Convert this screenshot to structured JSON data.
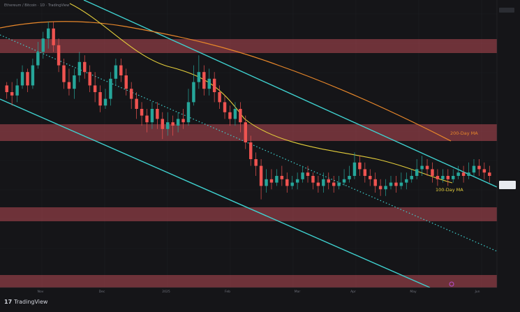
{
  "header": {
    "legend": "Ethereum / Bitcoin · 1D · TradingView"
  },
  "brand": {
    "name": "TradingView",
    "logo": "17"
  },
  "colors": {
    "background": "#151518",
    "up": "#26a69a",
    "down": "#ef5350",
    "zone": "#b84a55",
    "channel": "#3fd2d0",
    "ma100": "#e3cd3b",
    "ma200": "#e8872a"
  },
  "chart_data": {
    "type": "candlestick",
    "title": "",
    "xlabel": "",
    "ylabel": "",
    "x_ticks": [
      "Nov",
      "Dec",
      "2025",
      "Feb",
      "Mar",
      "Apr",
      "May",
      "Jun"
    ],
    "indicators": [
      {
        "name": "200-Day MA"
      },
      {
        "name": "100-Day MA"
      }
    ],
    "candles_ohlc_chart_units": [
      [
        84,
        80,
        86,
        76
      ],
      [
        80,
        78,
        86,
        72
      ],
      [
        78,
        84,
        88,
        74
      ],
      [
        84,
        92,
        96,
        82
      ],
      [
        92,
        84,
        94,
        80
      ],
      [
        84,
        96,
        100,
        82
      ],
      [
        96,
        104,
        110,
        94
      ],
      [
        104,
        112,
        116,
        100
      ],
      [
        112,
        118,
        122,
        106
      ],
      [
        118,
        108,
        122,
        104
      ],
      [
        108,
        96,
        112,
        92
      ],
      [
        96,
        86,
        100,
        82
      ],
      [
        86,
        82,
        94,
        78
      ],
      [
        82,
        90,
        94,
        76
      ],
      [
        90,
        98,
        104,
        86
      ],
      [
        98,
        92,
        102,
        88
      ],
      [
        92,
        84,
        96,
        80
      ],
      [
        84,
        80,
        92,
        74
      ],
      [
        80,
        72,
        84,
        68
      ],
      [
        72,
        76,
        82,
        70
      ],
      [
        76,
        88,
        92,
        72
      ],
      [
        88,
        96,
        100,
        84
      ],
      [
        96,
        90,
        100,
        86
      ],
      [
        90,
        82,
        94,
        78
      ],
      [
        82,
        76,
        86,
        70
      ],
      [
        76,
        70,
        80,
        64
      ],
      [
        70,
        66,
        74,
        60
      ],
      [
        66,
        62,
        70,
        56
      ],
      [
        62,
        70,
        74,
        58
      ],
      [
        70,
        64,
        74,
        58
      ],
      [
        64,
        58,
        68,
        52
      ],
      [
        58,
        62,
        68,
        54
      ],
      [
        62,
        60,
        66,
        54
      ],
      [
        60,
        64,
        68,
        56
      ],
      [
        64,
        62,
        70,
        58
      ],
      [
        62,
        74,
        82,
        60
      ],
      [
        74,
        86,
        96,
        72
      ],
      [
        86,
        92,
        102,
        82
      ],
      [
        92,
        82,
        96,
        78
      ],
      [
        82,
        88,
        94,
        78
      ],
      [
        88,
        80,
        92,
        74
      ],
      [
        80,
        74,
        84,
        70
      ],
      [
        74,
        68,
        78,
        64
      ],
      [
        68,
        64,
        72,
        60
      ],
      [
        64,
        70,
        74,
        60
      ],
      [
        70,
        62,
        74,
        56
      ],
      [
        62,
        50,
        66,
        46
      ],
      [
        50,
        40,
        54,
        36
      ],
      [
        40,
        36,
        44,
        30
      ],
      [
        36,
        24,
        40,
        16
      ],
      [
        24,
        28,
        34,
        20
      ],
      [
        28,
        26,
        34,
        22
      ],
      [
        26,
        30,
        34,
        24
      ],
      [
        30,
        28,
        36,
        24
      ],
      [
        28,
        24,
        32,
        20
      ],
      [
        24,
        26,
        30,
        22
      ],
      [
        26,
        28,
        32,
        22
      ],
      [
        28,
        32,
        36,
        26
      ],
      [
        32,
        30,
        36,
        26
      ],
      [
        30,
        26,
        32,
        22
      ],
      [
        26,
        24,
        30,
        20
      ],
      [
        24,
        28,
        32,
        20
      ],
      [
        28,
        26,
        32,
        22
      ],
      [
        26,
        24,
        30,
        20
      ],
      [
        24,
        26,
        30,
        22
      ],
      [
        26,
        28,
        34,
        24
      ],
      [
        28,
        30,
        36,
        26
      ],
      [
        30,
        38,
        44,
        28
      ],
      [
        38,
        34,
        42,
        30
      ],
      [
        34,
        30,
        38,
        26
      ],
      [
        30,
        28,
        34,
        24
      ],
      [
        28,
        24,
        32,
        20
      ],
      [
        24,
        22,
        28,
        18
      ],
      [
        22,
        24,
        28,
        18
      ],
      [
        24,
        26,
        30,
        22
      ],
      [
        26,
        24,
        30,
        20
      ],
      [
        24,
        26,
        32,
        22
      ],
      [
        26,
        28,
        32,
        22
      ],
      [
        28,
        30,
        34,
        26
      ],
      [
        30,
        34,
        40,
        28
      ],
      [
        34,
        36,
        42,
        30
      ],
      [
        36,
        34,
        40,
        30
      ],
      [
        34,
        30,
        38,
        26
      ],
      [
        30,
        28,
        34,
        24
      ],
      [
        28,
        30,
        34,
        26
      ],
      [
        30,
        28,
        34,
        24
      ],
      [
        28,
        30,
        34,
        26
      ],
      [
        30,
        32,
        36,
        28
      ],
      [
        32,
        30,
        36,
        26
      ],
      [
        30,
        32,
        38,
        28
      ],
      [
        32,
        36,
        40,
        30
      ],
      [
        36,
        34,
        40,
        30
      ],
      [
        34,
        32,
        38,
        28
      ],
      [
        32,
        30,
        36,
        26
      ]
    ]
  }
}
